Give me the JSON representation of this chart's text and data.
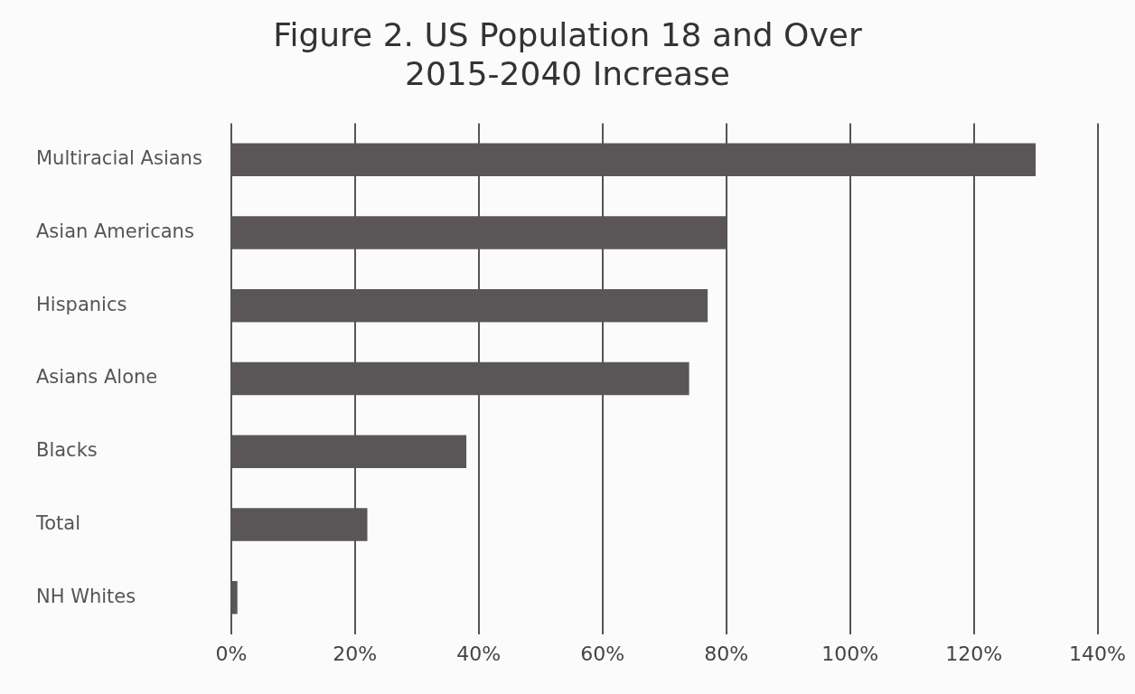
{
  "chart_data": {
    "type": "bar",
    "orientation": "horizontal",
    "title": "Figure 2. US Population 18 and Over\n2015-2040 Increase",
    "categories": [
      "Multiracial Asians",
      "Asian Americans",
      "Hispanics",
      "Asians Alone",
      "Blacks",
      "Total",
      "NH Whites"
    ],
    "values": [
      130,
      80,
      77,
      74,
      38,
      22,
      1
    ],
    "color": "#5a5658",
    "xlim": [
      0,
      140
    ],
    "xticks": [
      {
        "value": 0,
        "label": "0%"
      },
      {
        "value": 20,
        "label": "20%"
      },
      {
        "value": 40,
        "label": "40%"
      },
      {
        "value": 60,
        "label": "60%"
      },
      {
        "value": 80,
        "label": "80%"
      },
      {
        "value": 100,
        "label": "100%"
      },
      {
        "value": 120,
        "label": "120%"
      },
      {
        "value": 140,
        "label": "140%"
      }
    ],
    "grid": "x",
    "legend": false
  }
}
